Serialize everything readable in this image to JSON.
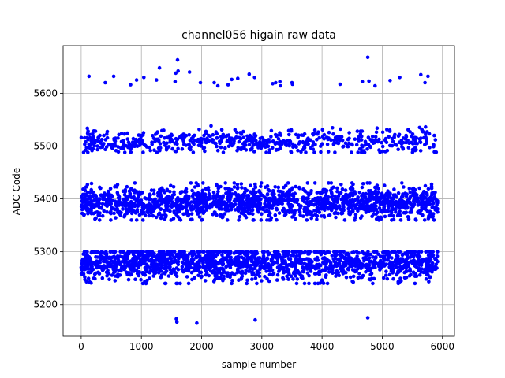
{
  "chart_data": {
    "type": "scatter",
    "title": "channel056 higain raw data",
    "xlabel": "sample number",
    "ylabel": "ADC Code",
    "xlim": [
      -300,
      6200
    ],
    "ylim": [
      5140,
      5690
    ],
    "xticks": [
      0,
      1000,
      2000,
      3000,
      4000,
      5000,
      6000
    ],
    "yticks": [
      5200,
      5300,
      5400,
      5500,
      5600
    ],
    "grid": true,
    "marker_color": "#0000ff",
    "n_samples": 5920,
    "bands": [
      {
        "center": 5278,
        "spread": 18,
        "min": 5240,
        "max": 5300
      },
      {
        "center": 5393,
        "spread": 17,
        "min": 5360,
        "max": 5430
      },
      {
        "center": 5508,
        "spread": 12,
        "min": 5488,
        "max": 5555
      }
    ],
    "outliers_high": [
      [
        130,
        5632
      ],
      [
        400,
        5620
      ],
      [
        540,
        5632
      ],
      [
        820,
        5616
      ],
      [
        920,
        5625
      ],
      [
        1040,
        5630
      ],
      [
        1250,
        5625
      ],
      [
        1300,
        5648
      ],
      [
        1560,
        5622
      ],
      [
        1570,
        5638
      ],
      [
        1600,
        5663
      ],
      [
        1610,
        5642
      ],
      [
        1800,
        5640
      ],
      [
        1980,
        5620
      ],
      [
        2210,
        5620
      ],
      [
        2270,
        5614
      ],
      [
        2440,
        5616
      ],
      [
        2500,
        5626
      ],
      [
        2600,
        5628
      ],
      [
        2790,
        5636
      ],
      [
        2880,
        5630
      ],
      [
        3180,
        5618
      ],
      [
        3230,
        5620
      ],
      [
        3300,
        5622
      ],
      [
        3310,
        5614
      ],
      [
        3500,
        5620
      ],
      [
        3510,
        5617
      ],
      [
        4300,
        5617
      ],
      [
        4670,
        5622
      ],
      [
        4760,
        5668
      ],
      [
        4780,
        5623
      ],
      [
        4880,
        5614
      ],
      [
        5130,
        5624
      ],
      [
        5290,
        5630
      ],
      [
        5640,
        5635
      ],
      [
        5710,
        5620
      ],
      [
        5760,
        5632
      ]
    ],
    "outliers_low": [
      [
        1580,
        5173
      ],
      [
        1590,
        5167
      ],
      [
        1920,
        5165
      ],
      [
        2890,
        5171
      ],
      [
        4760,
        5175
      ]
    ]
  }
}
